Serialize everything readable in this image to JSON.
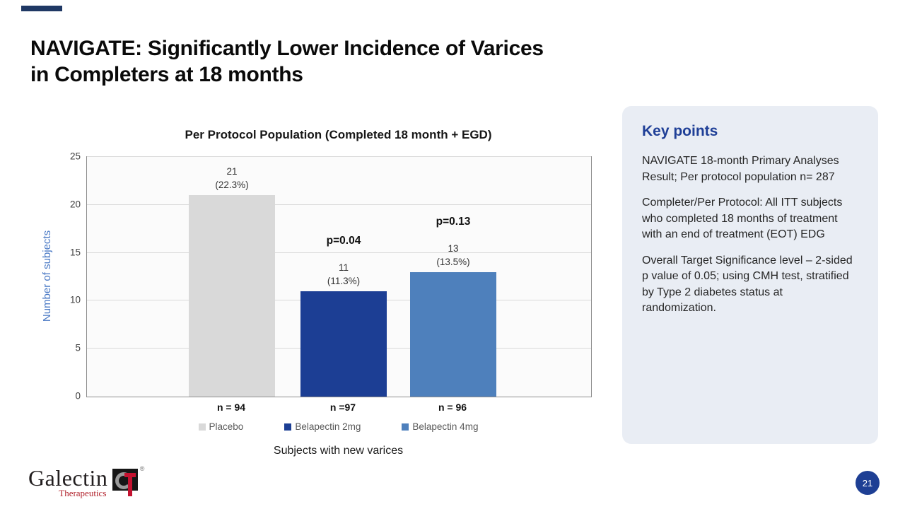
{
  "slide": {
    "title_line1": "NAVIGATE: Significantly Lower Incidence of Varices",
    "title_line2": "in Completers at 18 months",
    "accent_color": "#1f3864"
  },
  "chart_data": {
    "type": "bar",
    "title": "Per Protocol Population (Completed 18 month + EGD)",
    "xlabel": "Subjects with new varices",
    "ylabel": "Number of subjects",
    "ylim": [
      0,
      25
    ],
    "yticks": [
      0,
      5,
      10,
      15,
      20,
      25
    ],
    "grid": true,
    "legend_position": "bottom",
    "categories": [
      "Placebo",
      "Belapectin 2mg",
      "Belapectin 4mg"
    ],
    "values": [
      21,
      11,
      13
    ],
    "value_labels": [
      [
        "21",
        "(22.3%)"
      ],
      [
        "11",
        "(11.3%)"
      ],
      [
        "13",
        "(13.5%)"
      ]
    ],
    "n_labels": [
      "n = 94",
      "n =97",
      "n = 96"
    ],
    "p_values": [
      {
        "bar_index": 1,
        "label": "p=0.04"
      },
      {
        "bar_index": 2,
        "label": "p=0.13"
      }
    ],
    "bar_colors": [
      "#d9d9d9",
      "#1c3e94",
      "#4e80bc"
    ],
    "ylabel_color": "#4777c4"
  },
  "key_points": {
    "heading": "Key points",
    "heading_color": "#1f3f97",
    "bg_color": "#e9edf4",
    "paragraphs": [
      "NAVIGATE 18-month Primary Analyses Result; Per protocol population n= 287",
      "Completer/Per Protocol: All ITT subjects who completed 18 months of treatment with an end of treatment (EOT) EDG",
      "Overall Target Significance level – 2-sided p value of 0.05; using CMH test, stratified by Type 2 diabetes status at randomization."
    ]
  },
  "footer": {
    "logo_name": "Galectin",
    "logo_sub": "Therapeutics",
    "registered_mark": "®",
    "page_number": "21",
    "page_circle_color": "#1e3f94"
  }
}
